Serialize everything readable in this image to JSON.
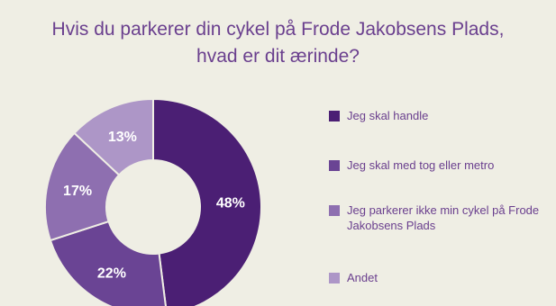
{
  "chart_data": {
    "type": "pie",
    "title": [
      "Hvis du parkerer din cykel på Frode Jakobsens Plads,",
      "hvad er dit ærinde?"
    ],
    "categories": [
      "Jeg skal handle",
      "Jeg skal med tog eller metro",
      "Jeg parkerer ikke min cykel på Frode Jakobsens Plads",
      "Andet"
    ],
    "values": [
      48,
      22,
      17,
      13
    ],
    "value_labels": [
      "48%",
      "22%",
      "17%",
      "13%"
    ],
    "colors": [
      "#4b1f74",
      "#6a4494",
      "#8e6fb0",
      "#ad96c7"
    ],
    "legend_position": "right",
    "hole": true
  }
}
